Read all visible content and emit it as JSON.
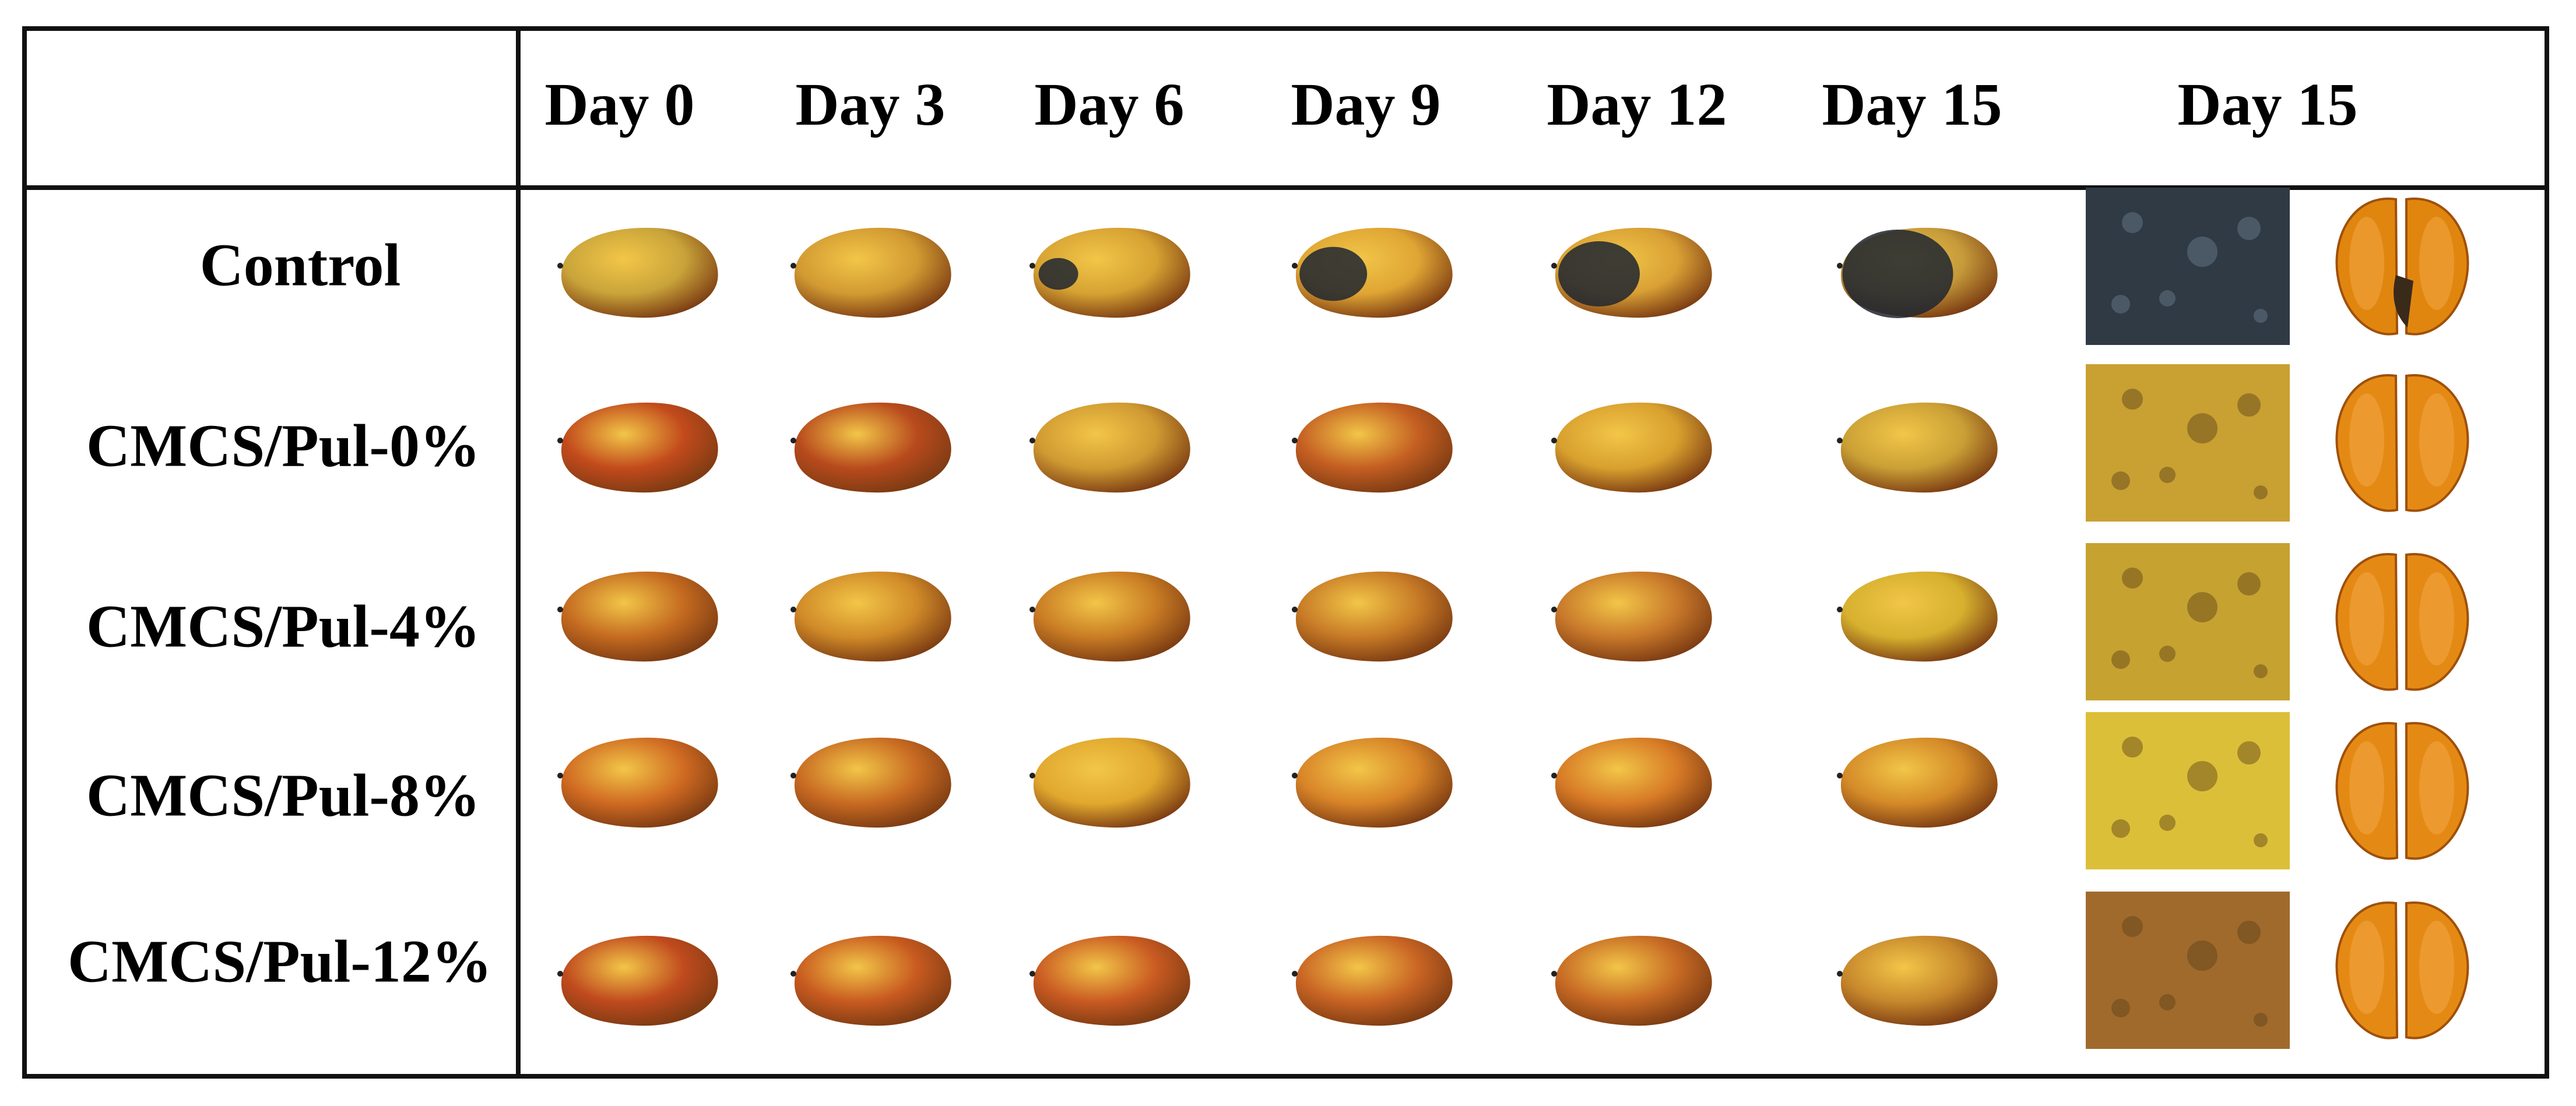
{
  "header": {
    "columns": [
      "Day 0",
      "Day 3",
      "Day 6",
      "Day 9",
      "Day 12",
      "Day 15",
      "Day 15"
    ]
  },
  "rows": [
    {
      "label": "Control",
      "fruit_colors": [
        "#c9a43a",
        "#d29a32",
        "#d6a232",
        "#dfa534",
        "#d9a035",
        "#c59a3a"
      ],
      "closeup": "#2f3a45",
      "section": "#e0860f"
    },
    {
      "label": "CMCS/Pul-0%",
      "fruit_colors": [
        "#c24a1c",
        "#b84a1d",
        "#d09a32",
        "#c45e22",
        "#d8a02e",
        "#caa036"
      ],
      "closeup": "#c9a032",
      "section": "#e48a14"
    },
    {
      "label": "CMCS/Pul-4%",
      "fruit_colors": [
        "#c46a20",
        "#d08a28",
        "#c97c24",
        "#c77a26",
        "#c8782a",
        "#d6b02e"
      ],
      "closeup": "#c6a230",
      "section": "#e48a14"
    },
    {
      "label": "CMCS/Pul-8%",
      "fruit_colors": [
        "#d06a22",
        "#c86a22",
        "#e1a82e",
        "#d88428",
        "#d77a26",
        "#d48a28"
      ],
      "closeup": "#dcbf38",
      "section": "#e48a14"
    },
    {
      "label": "CMCS/Pul-12%",
      "fruit_colors": [
        "#c04a1e",
        "#c85a20",
        "#c95a22",
        "#c96424",
        "#c76a24",
        "#c7882c"
      ],
      "closeup": "#a06a2c",
      "section": "#e48a14"
    }
  ]
}
